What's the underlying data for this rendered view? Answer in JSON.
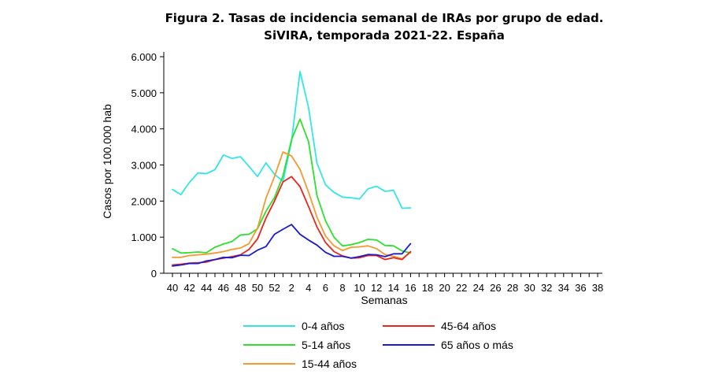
{
  "chart_data": {
    "type": "line",
    "title": "Figura 2. Tasas de incidencia semanal de IRAs por grupo de edad.",
    "subtitle": "SiVIRA, temporada 2021-22. España",
    "xlabel": "Semanas",
    "ylabel": "Casos por 100.000 hab",
    "ylim": [
      0,
      6000
    ],
    "yticks": [
      {
        "value": 0,
        "label": "0"
      },
      {
        "value": 1000,
        "label": "1.000"
      },
      {
        "value": 2000,
        "label": "2.000"
      },
      {
        "value": 3000,
        "label": "3.000"
      },
      {
        "value": 4000,
        "label": "4.000"
      },
      {
        "value": 5000,
        "label": "5.000"
      },
      {
        "value": 6000,
        "label": "6.000"
      }
    ],
    "xtick_labels": [
      "40",
      "42",
      "44",
      "46",
      "48",
      "50",
      "52",
      "2",
      "4",
      "6",
      "8",
      "10",
      "12",
      "14",
      "16",
      "18",
      "20",
      "22",
      "24",
      "26",
      "28",
      "30",
      "32",
      "34",
      "36",
      "38"
    ],
    "weeks": [
      "40",
      "41",
      "42",
      "43",
      "44",
      "45",
      "46",
      "47",
      "48",
      "49",
      "50",
      "51",
      "52",
      "1",
      "2",
      "3",
      "4",
      "5",
      "6",
      "7",
      "8",
      "9",
      "10",
      "11",
      "12",
      "13",
      "14",
      "15",
      "16"
    ],
    "series": [
      {
        "name": "0-4 años",
        "color": "#33e6e6",
        "values": [
          2320,
          2180,
          2520,
          2780,
          2760,
          2870,
          3280,
          3180,
          3230,
          2960,
          2680,
          3060,
          2740,
          2550,
          3650,
          5590,
          4600,
          3050,
          2450,
          2240,
          2110,
          2090,
          2060,
          2340,
          2410,
          2270,
          2300,
          1800,
          1810
        ]
      },
      {
        "name": "5-14 años",
        "color": "#2fe02f",
        "values": [
          680,
          560,
          570,
          590,
          570,
          720,
          810,
          880,
          1060,
          1080,
          1230,
          1720,
          2100,
          2700,
          3700,
          4270,
          3650,
          2150,
          1450,
          1000,
          760,
          790,
          850,
          940,
          920,
          770,
          760,
          620,
          560
        ]
      },
      {
        "name": "15-44 años",
        "color": "#f59a2e",
        "values": [
          440,
          440,
          490,
          510,
          530,
          560,
          600,
          660,
          700,
          820,
          1250,
          2080,
          2680,
          3360,
          3250,
          2880,
          2250,
          1550,
          1030,
          760,
          630,
          720,
          730,
          760,
          680,
          520,
          470,
          400,
          580
        ]
      },
      {
        "name": "45-64 años",
        "color": "#e8261e",
        "values": [
          230,
          250,
          280,
          290,
          310,
          380,
          420,
          460,
          510,
          660,
          950,
          1530,
          2000,
          2530,
          2680,
          2400,
          1850,
          1280,
          850,
          600,
          480,
          420,
          430,
          490,
          490,
          380,
          430,
          380,
          600
        ]
      },
      {
        "name": "65 años o más",
        "color": "#1a1ad0",
        "values": [
          200,
          230,
          270,
          270,
          340,
          380,
          440,
          430,
          500,
          490,
          640,
          740,
          1080,
          1220,
          1350,
          1080,
          920,
          780,
          580,
          470,
          470,
          420,
          460,
          520,
          510,
          460,
          540,
          540,
          820
        ]
      }
    ],
    "legend_position": "bottom"
  }
}
